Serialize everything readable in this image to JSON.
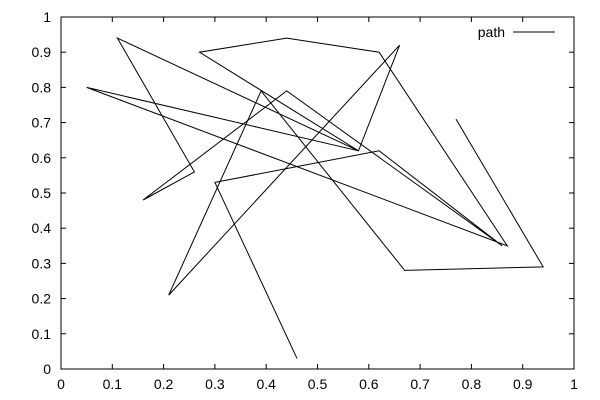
{
  "chart_data": {
    "type": "line",
    "title": "",
    "xlabel": "",
    "ylabel": "",
    "xlim": [
      0,
      1
    ],
    "ylim": [
      0,
      1
    ],
    "x_ticks": [
      "0",
      "0.1",
      "0.2",
      "0.3",
      "0.4",
      "0.5",
      "0.6",
      "0.7",
      "0.8",
      "0.9",
      "1"
    ],
    "y_ticks": [
      "0",
      "0.1",
      "0.2",
      "0.3",
      "0.4",
      "0.5",
      "0.6",
      "0.7",
      "0.8",
      "0.9",
      "1"
    ],
    "grid": false,
    "legend_position": "top-right",
    "series": [
      {
        "name": "path",
        "color": "#000000",
        "x": [
          0.77,
          0.94,
          0.67,
          0.39,
          0.21,
          0.66,
          0.58,
          0.27,
          0.44,
          0.62,
          0.87,
          0.05,
          0.58,
          0.11,
          0.26,
          0.16,
          0.44,
          0.86,
          0.62,
          0.3,
          0.46
        ],
        "y": [
          0.71,
          0.29,
          0.28,
          0.79,
          0.21,
          0.92,
          0.62,
          0.9,
          0.94,
          0.9,
          0.35,
          0.8,
          0.62,
          0.94,
          0.56,
          0.48,
          0.79,
          0.35,
          0.62,
          0.53,
          0.03
        ]
      }
    ]
  }
}
